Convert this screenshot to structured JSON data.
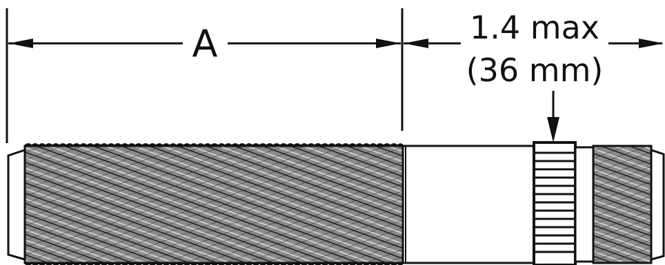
{
  "dimensions": {
    "a_label": "A",
    "max_length_inches": "1.4 max",
    "max_length_mm": "(36 mm)"
  },
  "colors": {
    "line": "#111111",
    "thread_fill": "#7a7a7a",
    "background": "#ffffff"
  }
}
